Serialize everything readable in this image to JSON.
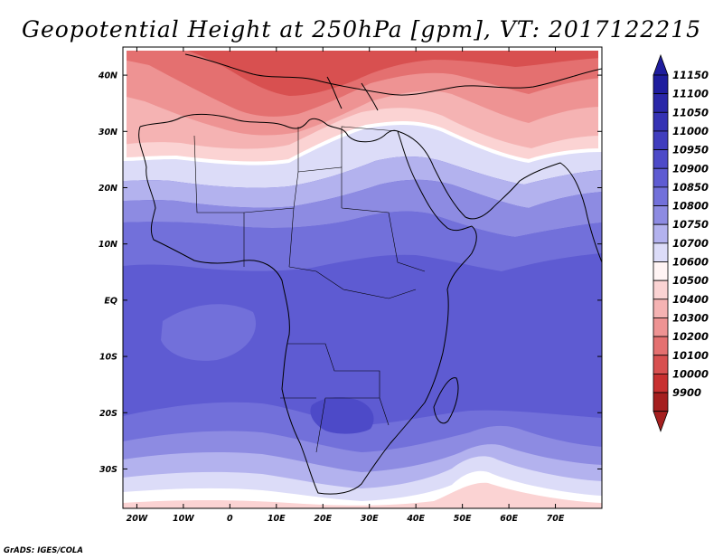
{
  "title": "Geopotential Height at 250hPa [gpm], VT: 2017122215",
  "credit": "GrADS: IGES/COLA",
  "map": {
    "lon_range": [
      -23,
      80
    ],
    "lat_range": [
      -37,
      45
    ],
    "lon_labels": [
      "20W",
      "10W",
      "0",
      "10E",
      "20E",
      "30E",
      "40E",
      "50E",
      "60E",
      "70E"
    ],
    "lat_labels": [
      "40N",
      "30N",
      "20N",
      "10N",
      "EQ",
      "10S",
      "20S",
      "30S"
    ]
  },
  "colorbar": {
    "levels": [
      "11150",
      "11100",
      "11050",
      "11000",
      "10950",
      "10900",
      "10850",
      "10800",
      "10750",
      "10700",
      "10600",
      "10500",
      "10400",
      "10300",
      "10200",
      "10100",
      "10000",
      "9900"
    ],
    "colors": [
      "#1f1d9e",
      "#2a27a8",
      "#3532b4",
      "#403dbe",
      "#4d4ac8",
      "#5e5bd2",
      "#7270da",
      "#8d8be2",
      "#b3b2ee",
      "#dcdcf8",
      "#fff4f4",
      "#fbd3d3",
      "#f5b3b3",
      "#ee9393",
      "#e47070",
      "#d85050",
      "#c83030",
      "#a51f1f"
    ]
  },
  "chart_data": {
    "type": "heatmap",
    "title": "Geopotential Height at 250hPa [gpm], VT: 2017122215",
    "variable": "Geopotential Height",
    "units": "gpm",
    "level": "250hPa",
    "valid_time": "2017122215",
    "lon_range": [
      -23,
      80
    ],
    "lat_range": [
      -37,
      45
    ],
    "contour_levels": [
      9900,
      10000,
      10100,
      10200,
      10300,
      10400,
      10500,
      10600,
      10700,
      10750,
      10800,
      10850,
      10900,
      10950,
      11000,
      11050,
      11100,
      11150
    ]
  }
}
